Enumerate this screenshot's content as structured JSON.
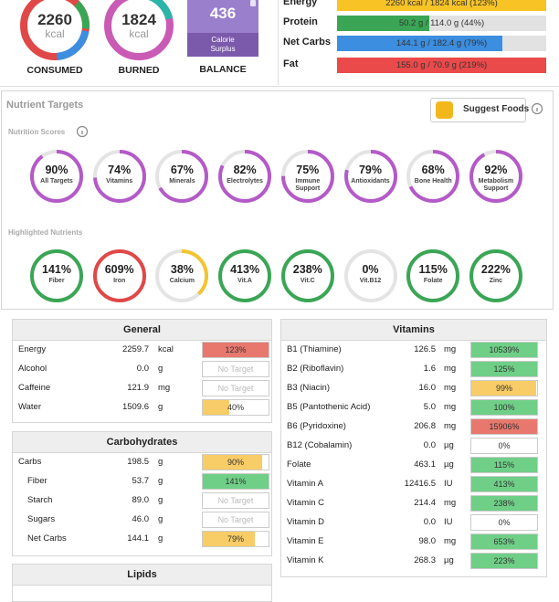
{
  "summary": {
    "consumed": {
      "value": "2260",
      "unit": "kcal",
      "label": "CONSUMED"
    },
    "burned": {
      "value": "1824",
      "unit": "kcal",
      "label": "BURNED"
    },
    "balance": {
      "value": "436",
      "note": "Calorie Surplus",
      "label": "BALANCE"
    },
    "bars": [
      {
        "name": "Energy",
        "value": 123,
        "value_label": "2260 kcal / 1824 kcal (123%)",
        "color": "#f7c325"
      },
      {
        "name": "Protein",
        "value": 44,
        "value_label": "50.2 g / 114.0 g (44%)",
        "color": "#3aa655"
      },
      {
        "name": "Net Carbs",
        "value": 79,
        "value_label": "144.1 g / 182.4 g (79%)",
        "color": "#3b8ee0"
      },
      {
        "name": "Fat",
        "value": 219,
        "value_label": "155.0 g / 70.9 g (219%)",
        "color": "#ea4a4a"
      }
    ]
  },
  "nutrient_targets": {
    "title": "Nutrient Targets",
    "button": "Suggest Foods",
    "scores": {
      "title": "Nutrition Scores",
      "color": "#b45ac8",
      "items": [
        {
          "value": 90,
          "value_label": "90%",
          "label": "All Targets"
        },
        {
          "value": 74,
          "value_label": "74%",
          "label": "Vitamins"
        },
        {
          "value": 67,
          "value_label": "67%",
          "label": "Minerals"
        },
        {
          "value": 82,
          "value_label": "82%",
          "label": "Electrolytes"
        },
        {
          "value": 75,
          "value_label": "75%",
          "label": "Immune Support"
        },
        {
          "value": 79,
          "value_label": "79%",
          "label": "Antioxidants"
        },
        {
          "value": 68,
          "value_label": "68%",
          "label": "Bone Health"
        },
        {
          "value": 92,
          "value_label": "92%",
          "label": "Metabolism Support"
        }
      ]
    },
    "highlighted": {
      "title": "Highlighted Nutrients",
      "items": [
        {
          "value": 141,
          "value_label": "141%",
          "label": "Fiber",
          "color": "#3aa655"
        },
        {
          "value": 609,
          "value_label": "609%",
          "label": "Iron",
          "color": "#e04848"
        },
        {
          "value": 38,
          "value_label": "38%",
          "label": "Calcium",
          "color": "#f2c531"
        },
        {
          "value": 413,
          "value_label": "413%",
          "label": "Vit.A",
          "color": "#3aa655"
        },
        {
          "value": 238,
          "value_label": "238%",
          "label": "Vit.C",
          "color": "#3aa655"
        },
        {
          "value": 0,
          "value_label": "0%",
          "label": "Vit.B12",
          "color": "#3aa655"
        },
        {
          "value": 115,
          "value_label": "115%",
          "label": "Folate",
          "color": "#3aa655"
        },
        {
          "value": 222,
          "value_label": "222%",
          "label": "Zinc",
          "color": "#3aa655"
        }
      ]
    }
  },
  "tables": [
    {
      "title": "General",
      "rows": [
        {
          "name": "Energy",
          "amount": "2259.7",
          "unit": "kcal",
          "value": 123,
          "value_label": "123%",
          "color": "#e8786e"
        },
        {
          "name": "Alcohol",
          "amount": "0.0",
          "unit": "g",
          "value": null,
          "value_label": "No Target"
        },
        {
          "name": "Caffeine",
          "amount": "121.9",
          "unit": "mg",
          "value": null,
          "value_label": "No Target"
        },
        {
          "name": "Water",
          "amount": "1509.6",
          "unit": "g",
          "value": 40,
          "value_label": "40%",
          "color": "#f8cc66"
        }
      ]
    },
    {
      "title": "Carbohydrates",
      "rows": [
        {
          "name": "Carbs",
          "amount": "198.5",
          "unit": "g",
          "value": 90,
          "value_label": "90%",
          "color": "#f8cc66"
        },
        {
          "name": "Fiber",
          "amount": "53.7",
          "unit": "g",
          "value": 141,
          "value_label": "141%",
          "color": "#6fcf87",
          "indent": true
        },
        {
          "name": "Starch",
          "amount": "89.0",
          "unit": "g",
          "value": null,
          "value_label": "No Target",
          "indent": true
        },
        {
          "name": "Sugars",
          "amount": "46.0",
          "unit": "g",
          "value": null,
          "value_label": "No Target",
          "indent": true
        },
        {
          "name": "Net Carbs",
          "amount": "144.1",
          "unit": "g",
          "value": 79,
          "value_label": "79%",
          "color": "#f8cc66",
          "indent": true
        }
      ]
    },
    {
      "title": "Lipids",
      "rows": []
    },
    {
      "title": "Vitamins",
      "rows": [
        {
          "name": "B1 (Thiamine)",
          "amount": "126.5",
          "unit": "mg",
          "value": 10539,
          "value_label": "10539%",
          "color": "#6fcf87"
        },
        {
          "name": "B2 (Riboflavin)",
          "amount": "1.6",
          "unit": "mg",
          "value": 125,
          "value_label": "125%",
          "color": "#6fcf87"
        },
        {
          "name": "B3 (Niacin)",
          "amount": "16.0",
          "unit": "mg",
          "value": 99,
          "value_label": "99%",
          "color": "#f8cc66"
        },
        {
          "name": "B5 (Pantothenic Acid)",
          "amount": "5.0",
          "unit": "mg",
          "value": 100,
          "value_label": "100%",
          "color": "#6fcf87"
        },
        {
          "name": "B6 (Pyridoxine)",
          "amount": "206.8",
          "unit": "mg",
          "value": 15906,
          "value_label": "15906%",
          "color": "#e8786e"
        },
        {
          "name": "B12 (Cobalamin)",
          "amount": "0.0",
          "unit": "µg",
          "value": 0,
          "value_label": "0%",
          "color": "#6fcf87"
        },
        {
          "name": "Folate",
          "amount": "463.1",
          "unit": "µg",
          "value": 115,
          "value_label": "115%",
          "color": "#6fcf87"
        },
        {
          "name": "Vitamin A",
          "amount": "12416.5",
          "unit": "IU",
          "value": 413,
          "value_label": "413%",
          "color": "#6fcf87"
        },
        {
          "name": "Vitamin C",
          "amount": "214.4",
          "unit": "mg",
          "value": 238,
          "value_label": "238%",
          "color": "#6fcf87"
        },
        {
          "name": "Vitamin D",
          "amount": "0.0",
          "unit": "IU",
          "value": 0,
          "value_label": "0%",
          "color": "#6fcf87"
        },
        {
          "name": "Vitamin E",
          "amount": "98.0",
          "unit": "mg",
          "value": 653,
          "value_label": "653%",
          "color": "#6fcf87"
        },
        {
          "name": "Vitamin K",
          "amount": "268.3",
          "unit": "µg",
          "value": 223,
          "value_label": "223%",
          "color": "#6fcf87"
        }
      ]
    }
  ]
}
